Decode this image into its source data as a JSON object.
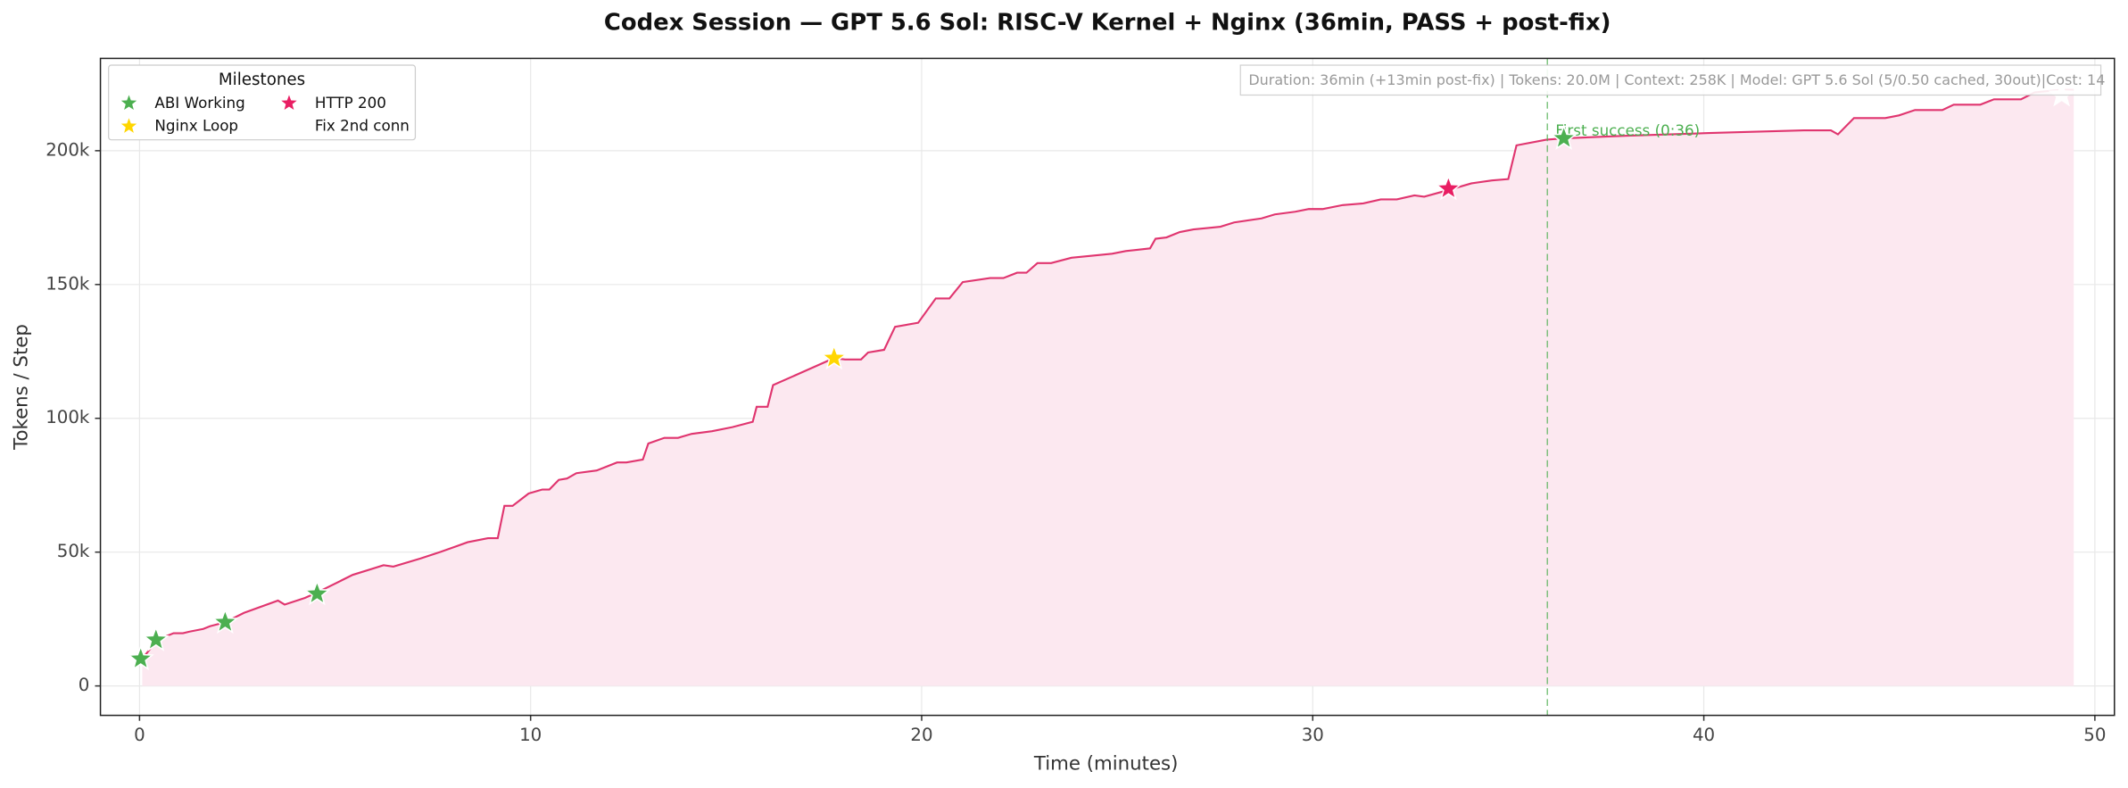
{
  "chart_data": {
    "type": "line",
    "title": "Codex Session — GPT 5.6 Sol: RISC-V Kernel + Nginx (36min, PASS + post-fix)",
    "xlabel": "Time (minutes)",
    "ylabel": "Tokens / Step",
    "color": "#e0356f",
    "fill_color": "#fce8f0",
    "x": [
      0.07,
      0.45,
      0.87,
      1.11,
      1.28,
      1.63,
      1.8,
      2.19,
      2.67,
      3.54,
      3.71,
      4.23,
      4.54,
      5.45,
      6.24,
      6.49,
      7.18,
      7.7,
      8.39,
      8.91,
      9.16,
      9.33,
      9.54,
      9.95,
      10.3,
      10.48,
      10.72,
      10.93,
      11.17,
      11.69,
      12.21,
      12.45,
      12.87,
      13.01,
      13.42,
      13.77,
      14.12,
      14.64,
      15.16,
      15.68,
      15.78,
      16.06,
      16.2,
      17.76,
      18.04,
      18.45,
      18.63,
      19.04,
      19.32,
      19.91,
      20.36,
      20.71,
      21.05,
      21.75,
      22.09,
      22.44,
      22.68,
      22.96,
      23.31,
      23.83,
      24.18,
      24.87,
      25.22,
      25.84,
      25.98,
      26.26,
      26.6,
      26.95,
      27.3,
      27.64,
      27.99,
      28.69,
      29.03,
      29.55,
      29.9,
      30.25,
      30.77,
      31.29,
      31.74,
      32.15,
      32.6,
      32.85,
      33.47,
      34.06,
      34.58,
      35.0,
      35.21,
      35.97,
      36.39,
      38.05,
      40.13,
      42.56,
      43.25,
      43.43,
      43.84,
      44.64,
      44.99,
      45.4,
      46.1,
      46.39,
      47.07,
      47.42,
      48.11,
      48.46,
      49.15,
      49.46
    ],
    "values": [
      10100,
      17200,
      19700,
      19700,
      20300,
      21300,
      22300,
      23800,
      27300,
      31900,
      30400,
      32900,
      34900,
      41500,
      45100,
      44600,
      47600,
      50100,
      53700,
      55200,
      55200,
      67300,
      67300,
      71900,
      73400,
      73400,
      77000,
      77500,
      79500,
      80500,
      83500,
      83500,
      84600,
      90600,
      92700,
      92700,
      94200,
      95200,
      96700,
      98700,
      104300,
      104300,
      112400,
      122500,
      122000,
      122000,
      124600,
      125600,
      134200,
      135700,
      144800,
      144800,
      150900,
      152400,
      152400,
      154400,
      154400,
      158000,
      158000,
      160000,
      160500,
      161500,
      162500,
      163500,
      167100,
      167600,
      169600,
      170600,
      171100,
      171600,
      173200,
      174700,
      176200,
      177200,
      178200,
      178200,
      179700,
      180300,
      181800,
      181800,
      183300,
      182800,
      185300,
      187800,
      188900,
      189400,
      202000,
      204100,
      204600,
      205600,
      206600,
      207600,
      207600,
      206100,
      212200,
      212200,
      213200,
      215200,
      215200,
      217200,
      217200,
      219200,
      219200,
      221800,
      222800,
      222800
    ],
    "xlim": [
      -1,
      50.5
    ],
    "ylim": [
      -11000,
      234500
    ],
    "xticks": [
      0,
      10,
      20,
      30,
      40,
      50
    ],
    "yticks": [
      0,
      {
        "value": 50000,
        "label": "50k"
      },
      {
        "value": 100000,
        "label": "100k"
      },
      {
        "value": 150000,
        "label": "150k"
      },
      {
        "value": 200000,
        "label": "200k"
      }
    ],
    "grid": true,
    "legend": {
      "title": "Milestones",
      "position": "upper left"
    },
    "milestones": [
      {
        "name": "ABI Working",
        "color": "#4caf50",
        "x": [
          0.03,
          0.42,
          2.19,
          4.54
        ],
        "values": [
          10100,
          17200,
          23800,
          34400
        ]
      },
      {
        "name": "Nginx Loop",
        "color": "#ffd600",
        "x": [
          17.76
        ],
        "values": [
          122500
        ]
      },
      {
        "name": "HTTP 200",
        "color": "#e91e63",
        "x": [
          33.47
        ],
        "values": [
          185800
        ]
      },
      {
        "name": "Fix 2nd conn",
        "color": "#ffffff",
        "x": [
          49.15
        ],
        "values": [
          220800
        ]
      }
    ],
    "success": {
      "x": 36,
      "star_x": 36.42,
      "star_value": 204600,
      "label": "First success (0:36)",
      "color": "#4caf50"
    },
    "info": "Duration: 36min (+13min post-fix) | Tokens: 20.0M | Context: 258K | Model: GPT 5.6 Sol (5/0.50 cached, 30out)|Cost: 14"
  }
}
